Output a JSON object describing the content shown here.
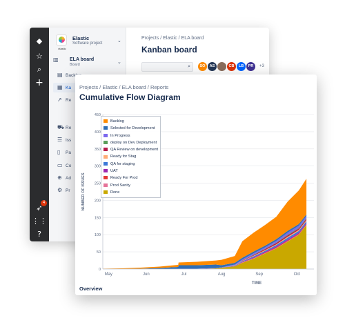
{
  "rail": {
    "icons": [
      "jira-logo-icon",
      "star-icon",
      "search-icon",
      "plus-icon",
      "rocket-icon",
      "apps-grid-icon",
      "help-icon"
    ],
    "notification_count": "4"
  },
  "sidebar": {
    "project_name": "Elastic",
    "project_type": "Software project",
    "logo_text": "elastic",
    "board_name": "ELA board",
    "board_type": "Board",
    "items": [
      {
        "label": "Backlog",
        "icon": "backlog-icon"
      },
      {
        "label": "Ka",
        "icon": "kanban-icon"
      },
      {
        "label": "Re",
        "icon": "reports-icon"
      },
      {
        "label": "Re",
        "icon": "releases-icon"
      },
      {
        "label": "Iss",
        "icon": "issues-icon"
      },
      {
        "label": "Pa",
        "icon": "pages-icon"
      },
      {
        "label": "Co",
        "icon": "code-icon"
      },
      {
        "label": "Ad",
        "icon": "add-item-icon"
      },
      {
        "label": "Pr",
        "icon": "settings-icon"
      }
    ]
  },
  "back": {
    "breadcrumb": "Projects  /  Elastic  /  ELA board",
    "title": "Kanban board",
    "avatars": [
      {
        "initials": "SO",
        "color": "#ff8b00"
      },
      {
        "initials": "AS",
        "color": "#253858"
      },
      {
        "initials": "",
        "color": "#8a6d5c"
      },
      {
        "initials": "CB",
        "color": "#de350b"
      },
      {
        "initials": "LB",
        "color": "#0065ff"
      },
      {
        "initials": "PR",
        "color": "#403294"
      }
    ],
    "more_avatars": "+3"
  },
  "front": {
    "breadcrumb": "Projects  /  Elastic  /  ELA board  /  Reports",
    "title": "Cumulative Flow Diagram",
    "overview": "Overview"
  },
  "chart_data": {
    "type": "area",
    "title": "Cumulative Flow Diagram",
    "xlabel": "TIME",
    "ylabel": "NUMBER OF ISSUES",
    "ylim": [
      0,
      450
    ],
    "yticks": [
      0,
      50,
      100,
      150,
      200,
      250,
      300,
      350,
      400,
      450
    ],
    "xticks": [
      "May",
      "Jun",
      "Jul",
      "Aug",
      "Sep",
      "Oct"
    ],
    "grid": true,
    "legend_position": "top-left",
    "x_months": [
      0,
      0.5,
      1,
      1.5,
      2,
      2.01,
      2.5,
      3,
      3.15,
      3.5,
      3.7,
      4,
      4.3,
      4.6,
      4.9,
      5.2,
      5.4
    ],
    "series": [
      {
        "name": "Backlog",
        "color": "#ff8b00",
        "values": [
          1,
          2,
          3,
          4,
          6,
          8,
          10,
          12,
          16,
          20,
          48,
          55,
          60,
          65,
          85,
          98,
          104
        ]
      },
      {
        "name": "Selected for Development",
        "color": "#2f6eb5",
        "values": [
          0,
          0,
          1,
          3,
          6,
          10,
          10,
          10,
          6,
          5,
          5,
          5,
          5,
          5,
          5,
          5,
          5
        ]
      },
      {
        "name": "In Progress",
        "color": "#7b68ee",
        "values": [
          0,
          0,
          0,
          0,
          0,
          1,
          1,
          1,
          1,
          2,
          3,
          4,
          4,
          5,
          6,
          6,
          6
        ]
      },
      {
        "name": "deploy on Dev Deployment",
        "color": "#5a9e5a",
        "values": [
          0,
          0,
          0,
          0,
          0,
          0,
          0,
          0,
          0,
          0,
          0,
          1,
          1,
          1,
          2,
          2,
          2
        ]
      },
      {
        "name": "QA Review on development",
        "color": "#b5194a",
        "values": [
          0,
          0,
          0,
          0,
          0,
          0,
          0,
          0,
          0,
          0,
          1,
          2,
          3,
          4,
          4,
          4,
          4
        ]
      },
      {
        "name": "Ready for Stag",
        "color": "#ffab76",
        "values": [
          0,
          0,
          0,
          0,
          0,
          0,
          0,
          0,
          0,
          1,
          1,
          2,
          2,
          2,
          3,
          3,
          3
        ]
      },
      {
        "name": "QA for staging",
        "color": "#3c78d8",
        "values": [
          0,
          0,
          0,
          0,
          0,
          0,
          0,
          0,
          0,
          1,
          2,
          3,
          3,
          4,
          5,
          5,
          5
        ]
      },
      {
        "name": "UAT",
        "color": "#9c27b0",
        "values": [
          0,
          0,
          0,
          0,
          0,
          0,
          0,
          0,
          0,
          1,
          1,
          2,
          2,
          3,
          3,
          3,
          3
        ]
      },
      {
        "name": "Ready For Prod",
        "color": "#e53935",
        "values": [
          0,
          0,
          0,
          0,
          0,
          0,
          0,
          0,
          0,
          0,
          1,
          1,
          2,
          2,
          2,
          2,
          2
        ]
      },
      {
        "name": "Prod Sanity",
        "color": "#e57399",
        "values": [
          0,
          0,
          0,
          0,
          0,
          0,
          0,
          0,
          0,
          0,
          1,
          1,
          1,
          1,
          1,
          1,
          1
        ]
      },
      {
        "name": "Done",
        "color": "#c9a800",
        "values": [
          0,
          0,
          0,
          0,
          0,
          0,
          0,
          2,
          4,
          8,
          18,
          30,
          45,
          60,
          80,
          100,
          128
        ]
      }
    ]
  }
}
